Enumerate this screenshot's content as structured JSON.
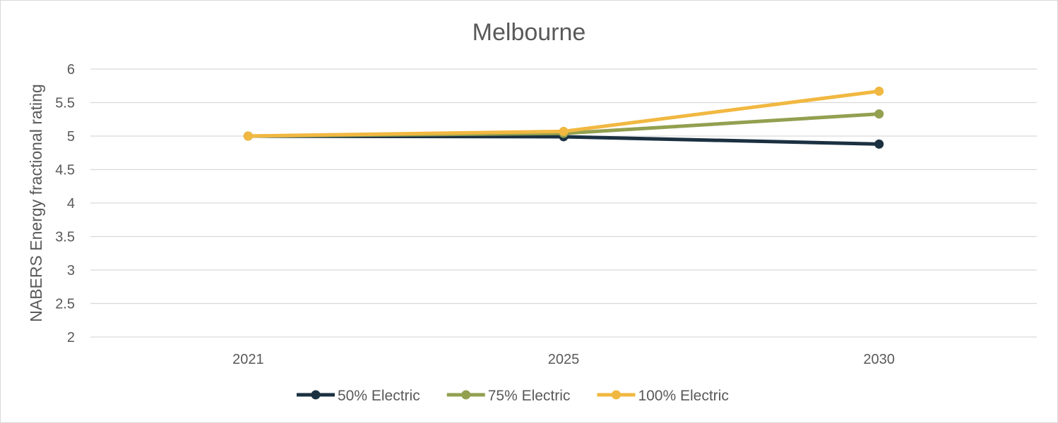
{
  "chart_data": {
    "type": "line",
    "title": "Melbourne",
    "xlabel": "",
    "ylabel": "NABERS Energy fractional rating",
    "categories": [
      "2021",
      "2025",
      "2030"
    ],
    "ylim": [
      2,
      6
    ],
    "yticks": [
      "2",
      "2.5",
      "3",
      "3.5",
      "4",
      "4.5",
      "5",
      "5.5",
      "6"
    ],
    "grid": true,
    "legend_position": "bottom",
    "series": [
      {
        "name": "50% Electric",
        "color": "#1b3142",
        "values": [
          5.0,
          4.99,
          4.88
        ]
      },
      {
        "name": "75% Electric",
        "color": "#92a050",
        "values": [
          5.0,
          5.04,
          5.33
        ]
      },
      {
        "name": "100% Electric",
        "color": "#f1b841",
        "values": [
          5.0,
          5.07,
          5.67
        ]
      }
    ]
  }
}
